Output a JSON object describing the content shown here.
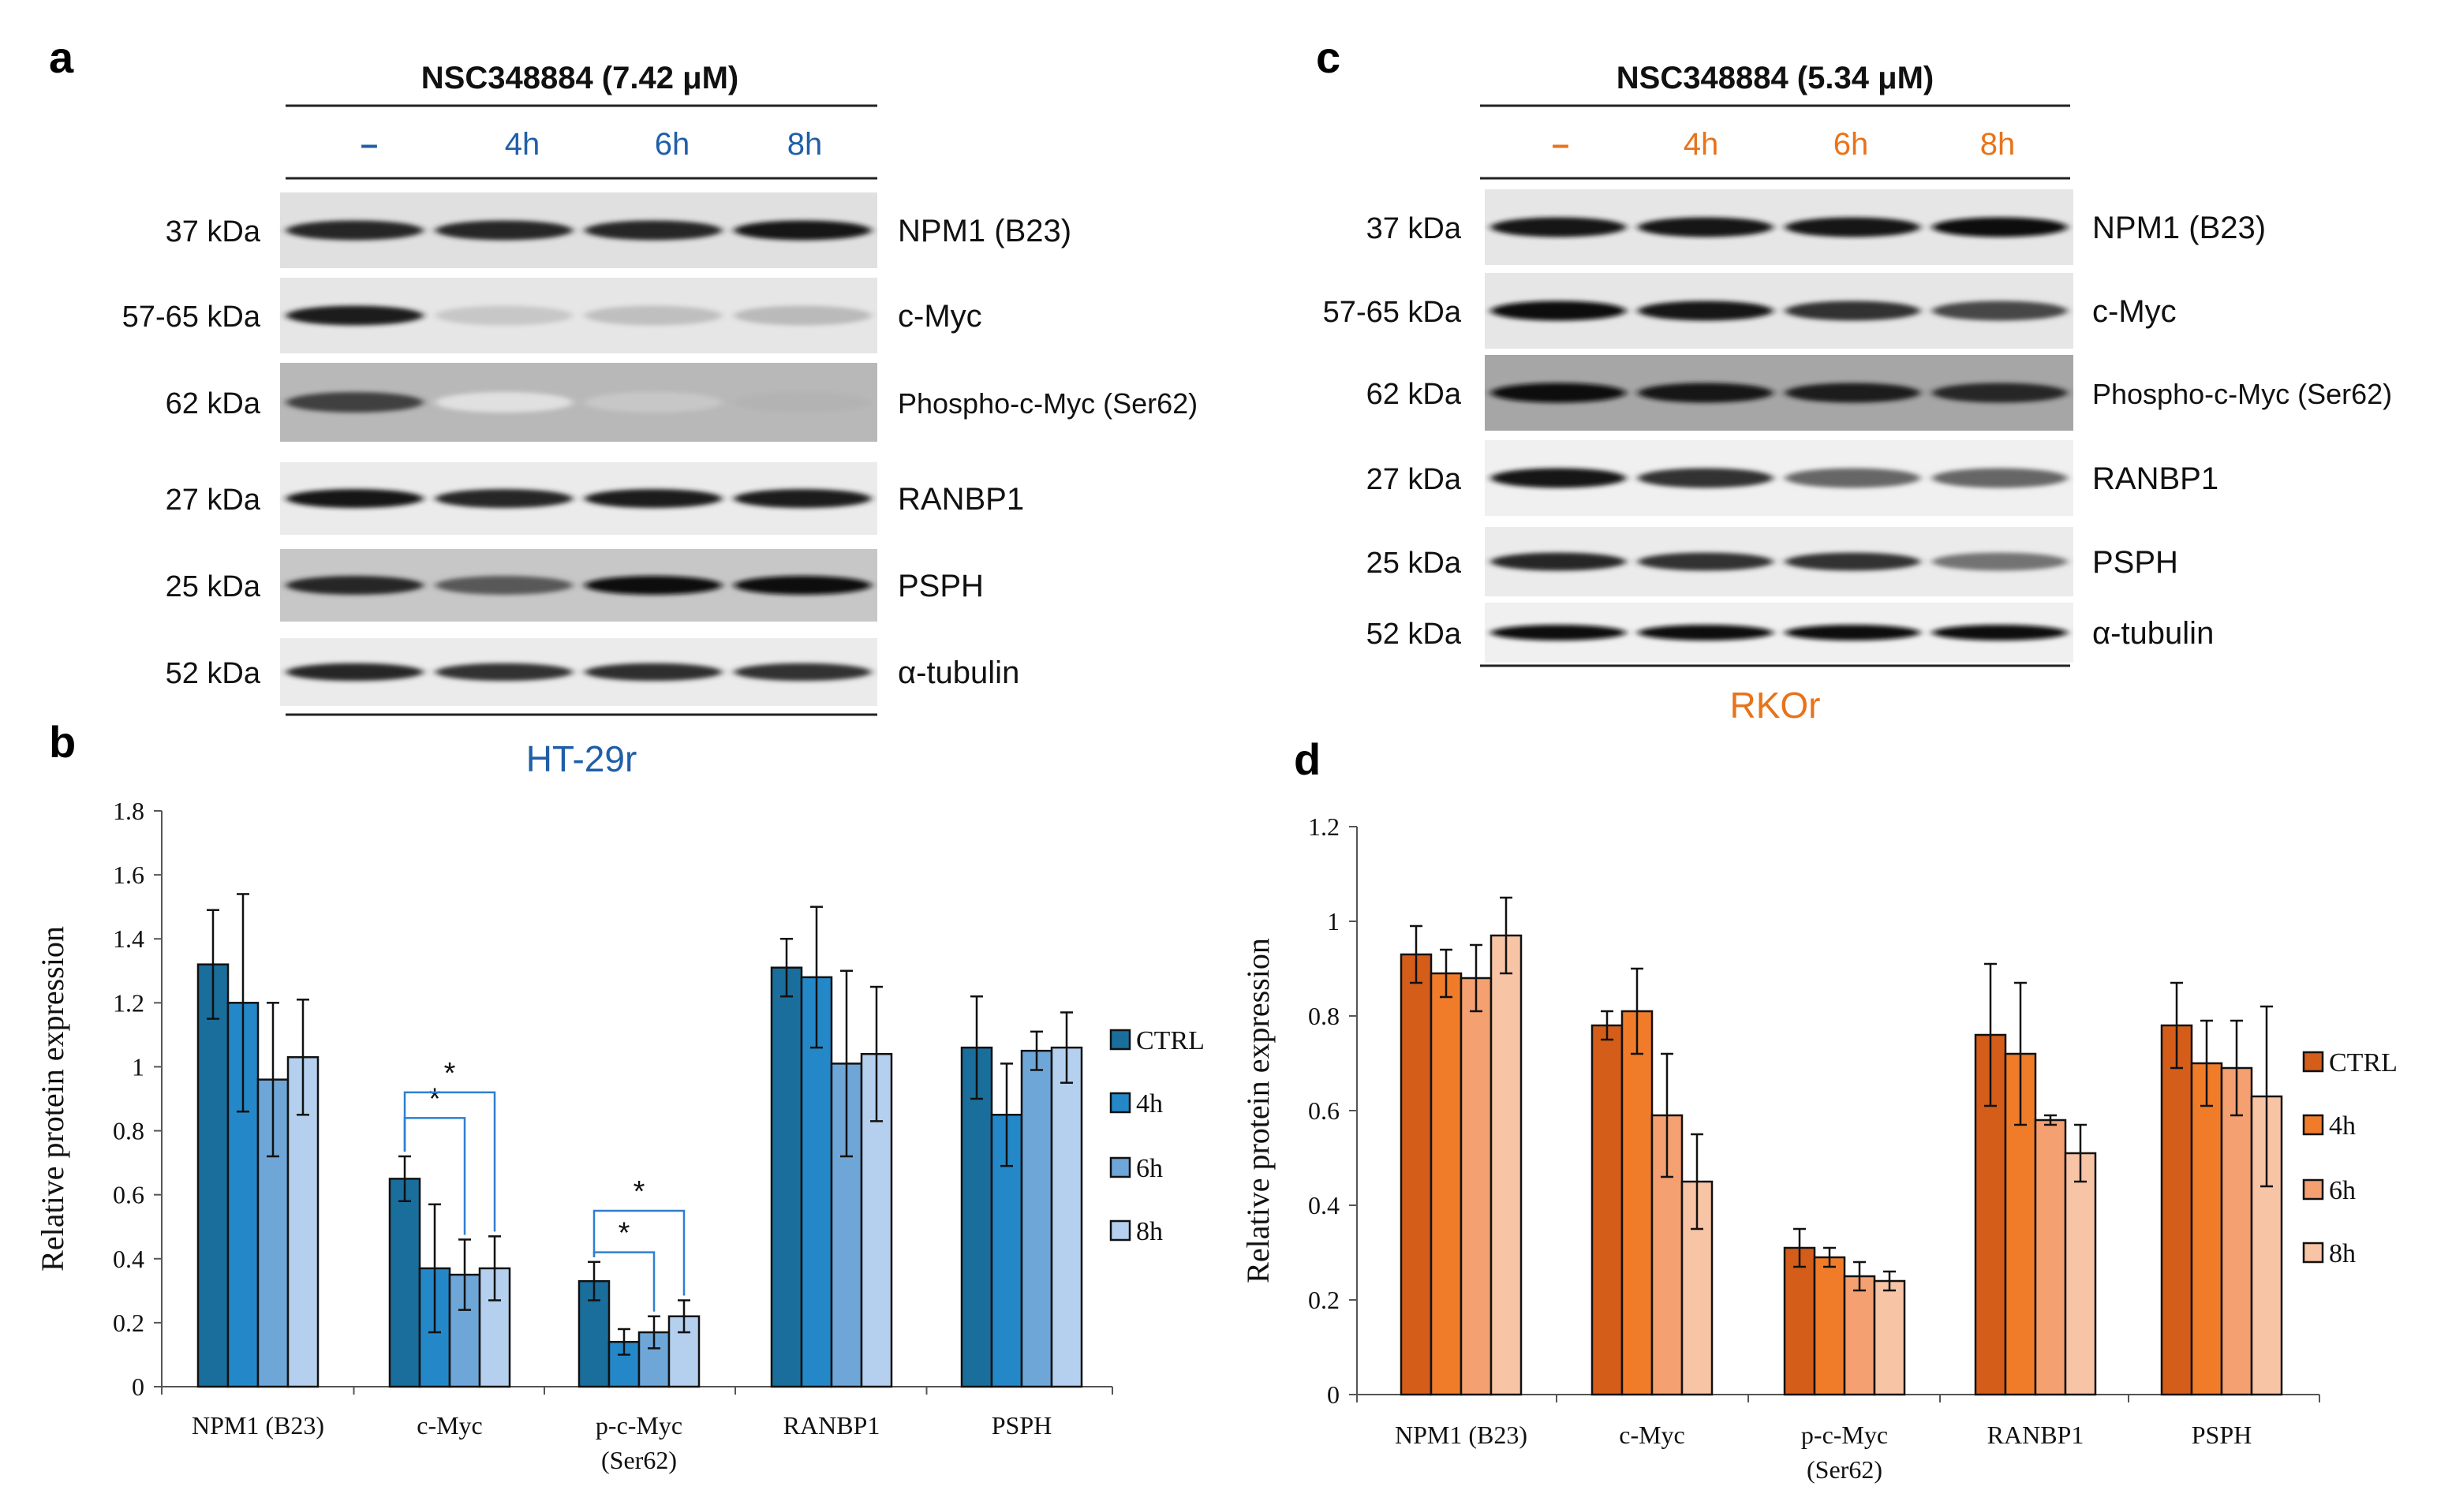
{
  "panels": {
    "a": {
      "letter": "a"
    },
    "b": {
      "letter": "b"
    },
    "c": {
      "letter": "c"
    },
    "d": {
      "letter": "d"
    }
  },
  "blots": [
    {
      "header": "NSC348884 (7.42 μM)",
      "lanes": [
        "–",
        "4h",
        "6h",
        "8h"
      ],
      "cell_line": "HT-29r",
      "accent": "#1f5fa8",
      "rows": [
        {
          "kda": "37 kDa",
          "protein": "NPM1 (B23)",
          "intensity": [
            0.85,
            0.85,
            0.85,
            0.92
          ],
          "bg": 0.12
        },
        {
          "kda": "57-65 kDa",
          "protein": "c-Myc",
          "intensity": [
            0.88,
            0.22,
            0.25,
            0.27
          ],
          "bg": 0.1
        },
        {
          "kda": "62 kDa",
          "protein": "Phospho-c-Myc (Ser62)",
          "intensity": [
            0.75,
            0.12,
            0.22,
            0.3
          ],
          "bg": 0.28
        },
        {
          "kda": "27 kDa",
          "protein": "RANBP1",
          "intensity": [
            0.9,
            0.85,
            0.88,
            0.88
          ],
          "bg": 0.08
        },
        {
          "kda": "25 kDa",
          "protein": "PSPH",
          "intensity": [
            0.85,
            0.65,
            0.95,
            0.95
          ],
          "bg": 0.22
        },
        {
          "kda": "52 kDa",
          "protein": "α-tubulin",
          "intensity": [
            0.85,
            0.8,
            0.82,
            0.8
          ],
          "bg": 0.08
        }
      ]
    },
    {
      "header": "NSC348884 (5.34 μM)",
      "lanes": [
        "–",
        "4h",
        "6h",
        "8h"
      ],
      "cell_line": "RKOr",
      "accent": "#e8731a",
      "rows": [
        {
          "kda": "37 kDa",
          "protein": "NPM1 (B23)",
          "intensity": [
            0.92,
            0.92,
            0.92,
            0.95
          ],
          "bg": 0.1
        },
        {
          "kda": "57-65 kDa",
          "protein": "c-Myc",
          "intensity": [
            0.95,
            0.92,
            0.8,
            0.72
          ],
          "bg": 0.1
        },
        {
          "kda": "62 kDa",
          "protein": "Phospho-c-Myc (Ser62)",
          "intensity": [
            0.95,
            0.92,
            0.88,
            0.85
          ],
          "bg": 0.35
        },
        {
          "kda": "27 kDa",
          "protein": "RANBP1",
          "intensity": [
            0.9,
            0.8,
            0.6,
            0.6
          ],
          "bg": 0.06
        },
        {
          "kda": "25 kDa",
          "protein": "PSPH",
          "intensity": [
            0.85,
            0.8,
            0.8,
            0.55
          ],
          "bg": 0.08
        },
        {
          "kda": "52 kDa",
          "protein": "α-tubulin",
          "intensity": [
            0.95,
            0.95,
            0.95,
            0.95
          ],
          "bg": 0.06
        }
      ]
    }
  ],
  "chart_data": [
    {
      "type": "bar",
      "panel": "b",
      "ylabel": "Relative protein expression",
      "ylim": [
        0,
        1.8
      ],
      "yticks": [
        "0",
        "0.2",
        "0.4",
        "0.6",
        "0.8",
        "1",
        "1.2",
        "1.4",
        "1.6",
        "1.8"
      ],
      "categories": [
        "NPM1 (B23)",
        "c-Myc",
        "p-c-Myc (Ser62)",
        "RANBP1",
        "PSPH"
      ],
      "category_lines": [
        [
          "NPM1 (B23)"
        ],
        [
          "c-Myc"
        ],
        [
          "p-c-Myc",
          "(Ser62)"
        ],
        [
          "RANBP1"
        ],
        [
          "PSPH"
        ]
      ],
      "series": [
        {
          "name": "CTRL",
          "color": "#1a6e9c",
          "values": [
            1.32,
            0.65,
            0.33,
            1.31,
            1.06
          ],
          "errors": [
            0.17,
            0.07,
            0.06,
            0.09,
            0.16
          ]
        },
        {
          "name": "4h",
          "color": "#2488c8",
          "values": [
            1.2,
            0.37,
            0.14,
            1.28,
            0.85
          ],
          "errors": [
            0.34,
            0.2,
            0.04,
            0.22,
            0.16
          ]
        },
        {
          "name": "6h",
          "color": "#6ea6d8",
          "values": [
            0.96,
            0.35,
            0.17,
            1.01,
            1.05
          ],
          "errors": [
            0.24,
            0.11,
            0.05,
            0.29,
            0.06
          ]
        },
        {
          "name": "8h",
          "color": "#b4d0ee",
          "values": [
            1.03,
            0.37,
            0.22,
            1.04,
            1.06
          ],
          "errors": [
            0.18,
            0.1,
            0.05,
            0.21,
            0.11
          ]
        }
      ],
      "annotations": [
        {
          "category": 1,
          "from": 0,
          "to": 2,
          "y": 0.84,
          "label": "*"
        },
        {
          "category": 1,
          "from": 0,
          "to": 3,
          "y": 0.92,
          "label": "*"
        },
        {
          "category": 2,
          "from": 0,
          "to": 2,
          "y": 0.42,
          "label": "*"
        },
        {
          "category": 2,
          "from": 0,
          "to": 3,
          "y": 0.55,
          "label": "*"
        }
      ],
      "legend": "right"
    },
    {
      "type": "bar",
      "panel": "d",
      "ylabel": "Relative protein expression",
      "ylim": [
        0,
        1.2
      ],
      "yticks": [
        "0",
        "0.2",
        "0.4",
        "0.6",
        "0.8",
        "1",
        "1.2"
      ],
      "categories": [
        "NPM1 (B23)",
        "c-Myc",
        "p-c-Myc (Ser62)",
        "RANBP1",
        "PSPH"
      ],
      "category_lines": [
        [
          "NPM1 (B23)"
        ],
        [
          "c-Myc"
        ],
        [
          "p-c-Myc",
          "(Ser62)"
        ],
        [
          "RANBP1"
        ],
        [
          "PSPH"
        ]
      ],
      "series": [
        {
          "name": "CTRL",
          "color": "#d45d1a",
          "values": [
            0.93,
            0.78,
            0.31,
            0.76,
            0.78
          ],
          "errors": [
            0.06,
            0.03,
            0.04,
            0.15,
            0.09
          ]
        },
        {
          "name": "4h",
          "color": "#f07c2a",
          "values": [
            0.89,
            0.81,
            0.29,
            0.72,
            0.7
          ],
          "errors": [
            0.05,
            0.09,
            0.02,
            0.15,
            0.09
          ]
        },
        {
          "name": "6h",
          "color": "#f4a071",
          "values": [
            0.88,
            0.59,
            0.25,
            0.58,
            0.69
          ],
          "errors": [
            0.07,
            0.13,
            0.03,
            0.01,
            0.1
          ]
        },
        {
          "name": "8h",
          "color": "#f8c4a6",
          "values": [
            0.97,
            0.45,
            0.24,
            0.51,
            0.63
          ],
          "errors": [
            0.08,
            0.1,
            0.02,
            0.06,
            0.19
          ]
        }
      ],
      "annotations": [],
      "legend": "right"
    }
  ]
}
